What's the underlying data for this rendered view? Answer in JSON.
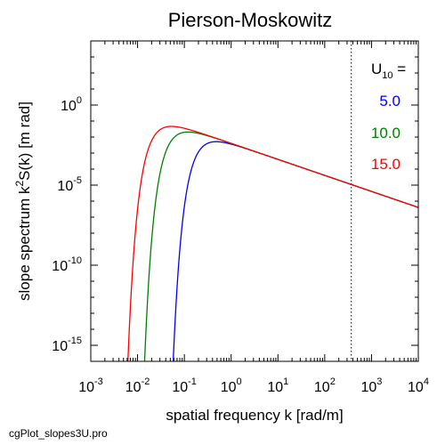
{
  "chart_data": {
    "type": "line",
    "title": "Pierson-Moskowitz",
    "xlabel": "spatial frequency k [rad/m]",
    "ylabel_parts": {
      "a": "slope spectrum k",
      "sup": "2",
      "b": "S(k) [m rad]"
    },
    "xscale": "log",
    "yscale": "log",
    "xlim": [
      0.001,
      10000
    ],
    "ylim": [
      1e-16,
      10000.0
    ],
    "xticks": [
      {
        "base": "10",
        "exp": "-3",
        "value": 0.001
      },
      {
        "base": "10",
        "exp": "-2",
        "value": 0.01
      },
      {
        "base": "10",
        "exp": "-1",
        "value": 0.1
      },
      {
        "base": "10",
        "exp": "0",
        "value": 1
      },
      {
        "base": "10",
        "exp": "1",
        "value": 10
      },
      {
        "base": "10",
        "exp": "2",
        "value": 100
      },
      {
        "base": "10",
        "exp": "3",
        "value": 1000
      },
      {
        "base": "10",
        "exp": "4",
        "value": 10000
      }
    ],
    "yticks": [
      {
        "base": "10",
        "exp": "0",
        "value": 1
      },
      {
        "base": "10",
        "exp": "-5",
        "value": 1e-05
      },
      {
        "base": "10",
        "exp": "-10",
        "value": 1e-10
      },
      {
        "base": "10",
        "exp": "-15",
        "value": 1e-15
      }
    ],
    "vline_x": 370,
    "grid": false,
    "legend_position": "right",
    "legend_title": {
      "base": "U",
      "sub": "10",
      "suffix": " ="
    },
    "series": [
      {
        "name": "5.0",
        "color": "#0000ff",
        "U10": 5.0
      },
      {
        "name": "10.0",
        "color": "#008000",
        "U10": 10.0
      },
      {
        "name": "15.0",
        "color": "#ff0000",
        "U10": 15.0
      }
    ]
  },
  "footer": "cgPlot_slopes3U.pro"
}
